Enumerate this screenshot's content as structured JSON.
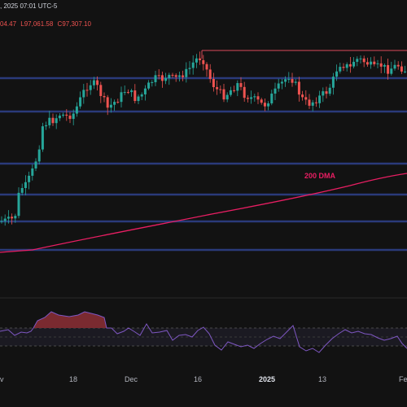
{
  "header": {
    "date_text": ", 2025 07:01 UTC-5",
    "ohlc": [
      {
        "text": "04.47",
        "color": "#ef5350"
      },
      {
        "text": "L97,061.58",
        "color": "#ef5350"
      },
      {
        "text": "C97,307.10",
        "color": "#ef5350"
      }
    ]
  },
  "xaxis": {
    "ticks": [
      {
        "label": "v",
        "bold": false
      },
      {
        "label": "18",
        "bold": false
      },
      {
        "label": "Dec",
        "bold": false
      },
      {
        "label": "16",
        "bold": false
      },
      {
        "label": "2025",
        "bold": true
      },
      {
        "label": "13",
        "bold": false
      },
      {
        "label": "Fe",
        "bold": false
      }
    ]
  },
  "annotations": {
    "ma_label": "200 DMA",
    "ma_color": "#e91e63"
  },
  "colors": {
    "background": "#121212",
    "bull": "#26a69a",
    "bear": "#ef5350",
    "level_line": "#2a3a7a",
    "resistance": "#d9495a",
    "rsi_line": "#7e57c2",
    "overbought_fill": "#7a2a30"
  },
  "chart_data": {
    "type": "candlestick",
    "indicators": [
      "200 DMA",
      "RSI"
    ],
    "grid": false
  }
}
